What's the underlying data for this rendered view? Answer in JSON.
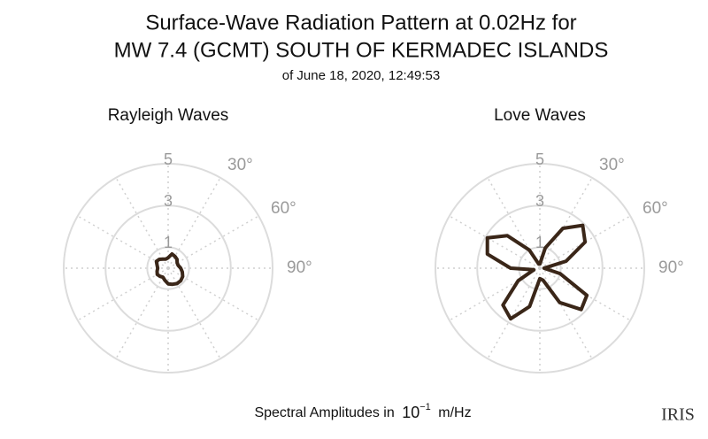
{
  "title_lines": [
    "Surface-Wave Radiation Pattern at 0.02Hz for",
    "MW 7.4 (GCMT) SOUTH OF KERMADEC ISLANDS"
  ],
  "subtitle": "of June 18, 2020, 12:49:53",
  "footer": {
    "text": "Spectral Amplitudes in",
    "base": "10",
    "exponent": "−1",
    "unit": "m/Hz"
  },
  "logo": "IRIS",
  "chart_data": [
    {
      "type": "polar",
      "title": "Rayleigh Waves",
      "color": "#3a2618",
      "rlim": [
        0,
        5
      ],
      "rticks": [
        1,
        3,
        5
      ],
      "thetagrid": [
        0,
        30,
        60,
        90,
        120,
        150,
        180,
        210,
        240,
        270,
        300,
        330
      ],
      "thetaticks": [
        {
          "value": 30,
          "label": "30°"
        },
        {
          "value": 60,
          "label": "60°"
        },
        {
          "value": 90,
          "label": "90°"
        }
      ],
      "theta": [
        0,
        15,
        30,
        45,
        60,
        75,
        90,
        105,
        120,
        135,
        150,
        165,
        180,
        195,
        210,
        225,
        240,
        255,
        270,
        285,
        300,
        315,
        330,
        345
      ],
      "values": [
        0.5,
        0.7,
        0.65,
        0.6,
        0.5,
        0.5,
        0.6,
        0.7,
        0.8,
        0.85,
        0.85,
        0.8,
        0.75,
        0.6,
        0.5,
        0.55,
        0.6,
        0.55,
        0.5,
        0.55,
        0.65,
        0.6,
        0.5,
        0.45
      ]
    },
    {
      "type": "polar",
      "title": "Love Waves",
      "color": "#3a2618",
      "rlim": [
        0,
        5
      ],
      "rticks": [
        1,
        3,
        5
      ],
      "thetagrid": [
        0,
        30,
        60,
        90,
        120,
        150,
        180,
        210,
        240,
        270,
        300,
        330
      ],
      "thetaticks": [
        {
          "value": 30,
          "label": "30°"
        },
        {
          "value": 60,
          "label": "60°"
        },
        {
          "value": 90,
          "label": "90°"
        }
      ],
      "theta": [
        0,
        15,
        30,
        45,
        60,
        75,
        90,
        105,
        120,
        135,
        150,
        165,
        180,
        195,
        210,
        225,
        240,
        255,
        270,
        285,
        300,
        315,
        330,
        345
      ],
      "values": [
        0.2,
        1.0,
        2.2,
        2.9,
        2.5,
        1.3,
        0.2,
        1.0,
        2.6,
        2.8,
        1.9,
        0.6,
        0.5,
        1.9,
        2.8,
        2.5,
        1.2,
        0.3,
        1.4,
        2.6,
        2.9,
        2.2,
        1.0,
        0.2
      ]
    }
  ]
}
